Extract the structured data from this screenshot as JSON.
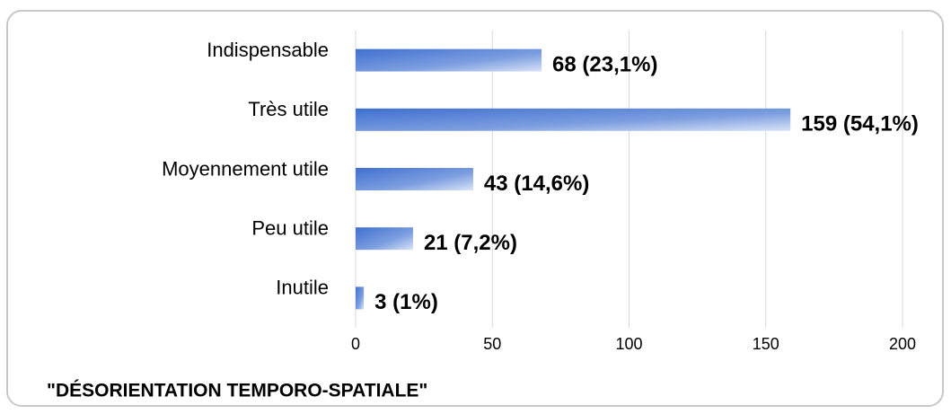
{
  "chart_data": {
    "type": "bar",
    "orientation": "horizontal",
    "title": "\"DÉSORIENTATION TEMPORO-SPATIALE\"",
    "categories": [
      "Indispensable",
      "Très utile",
      "Moyennement utile",
      "Peu utile",
      "Inutile"
    ],
    "values": [
      68,
      159,
      43,
      21,
      3
    ],
    "value_labels": [
      "68 (23,1%)",
      "159 (54,1%)",
      "43 (14,6%)",
      "21 (7,2%)",
      "3 (1%)"
    ],
    "color": "#4472c4",
    "xlim": [
      0,
      200
    ],
    "xticks": [
      0,
      50,
      100,
      150,
      200
    ],
    "grid": true
  }
}
